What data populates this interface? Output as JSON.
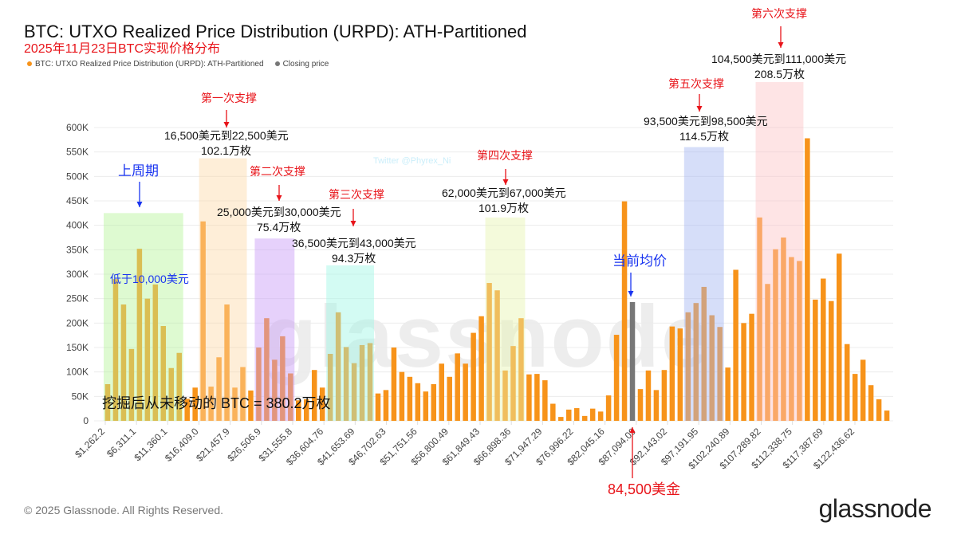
{
  "header": {
    "title": "BTC: UTXO Realized Price Distribution (URPD): ATH-Partitioned",
    "subtitle": "2025年11月23日BTC实现价格分布"
  },
  "legend": [
    {
      "label": "BTC: UTXO Realized Price Distribution (URPD): ATH-Partitioned",
      "color": "#f7931a"
    },
    {
      "label": "Closing price",
      "color": "#777777"
    }
  ],
  "chart_data": {
    "type": "bar",
    "title": "BTC: UTXO Realized Price Distribution (URPD): ATH-Partitioned",
    "ylim": [
      0,
      600000
    ],
    "yticks": [
      0,
      50000,
      100000,
      150000,
      200000,
      250000,
      300000,
      350000,
      400000,
      450000,
      500000,
      550000,
      600000
    ],
    "ytick_labels": [
      "0",
      "50K",
      "100K",
      "150K",
      "200K",
      "250K",
      "300K",
      "350K",
      "400K",
      "450K",
      "500K",
      "550K",
      "600K"
    ],
    "xtick_labels": [
      "$1,262.2",
      "$6,311.1",
      "$11,360.1",
      "$16,409.0",
      "$21,457.9",
      "$26,506.9",
      "$31,555.8",
      "$36,604.76",
      "$41,653.69",
      "$46,702.63",
      "$51,751.56",
      "$56,800.49",
      "$61,849.43",
      "$66,898.36",
      "$71,947.29",
      "$76,996.22",
      "$82,045.16",
      "$87,094.09",
      "$92,143.02",
      "$97,191.95",
      "$102,240.89",
      "$107,289.82",
      "$112,338.75",
      "$117,387.69",
      "$122,436.62"
    ],
    "grid": true,
    "legend_position": "top-left",
    "closing_price_bar_index": 66,
    "colors": {
      "bar": "#f7931a",
      "closing": "#777777"
    },
    "values": [
      75000,
      290000,
      238000,
      147000,
      352000,
      250000,
      279000,
      194000,
      108000,
      139000,
      45000,
      68000,
      408000,
      70000,
      130000,
      238000,
      68000,
      110000,
      62000,
      150000,
      210000,
      125000,
      173000,
      97000,
      42000,
      44000,
      104000,
      68000,
      137000,
      222000,
      151000,
      118000,
      155000,
      159000,
      56000,
      63000,
      150000,
      100000,
      90000,
      77000,
      60000,
      75000,
      117000,
      90000,
      138000,
      117000,
      180000,
      214000,
      282000,
      267000,
      103000,
      153000,
      210000,
      95000,
      96000,
      83000,
      35000,
      8000,
      23000,
      26000,
      10000,
      25000,
      19000,
      52000,
      176000,
      449000,
      243000,
      65000,
      103000,
      63000,
      104000,
      193000,
      189000,
      222000,
      241000,
      274000,
      216000,
      192000,
      109000,
      309000,
      200000,
      219000,
      416000,
      280000,
      351000,
      375000,
      335000,
      327000,
      578000,
      248000,
      291000,
      245000,
      342000,
      157000,
      96000,
      125000,
      73000,
      44000,
      21000
    ],
    "highlight_regions": [
      {
        "name": "上周期",
        "from_bar": 0,
        "to_bar": 9,
        "color": "#b6f59a"
      },
      {
        "name": "第一次支撑",
        "from_bar": 12,
        "to_bar": 17,
        "color": "#fdd9a8"
      },
      {
        "name": "第二次支撑",
        "from_bar": 19,
        "to_bar": 23,
        "color": "#c79af7"
      },
      {
        "name": "第三次支撑",
        "from_bar": 28,
        "to_bar": 33,
        "color": "#9df7e4"
      },
      {
        "name": "第四次支撑",
        "from_bar": 48,
        "to_bar": 52,
        "color": "#e6f5b0"
      },
      {
        "name": "第五次支撑",
        "from_bar": 73,
        "to_bar": 77,
        "color": "#a3b5f2"
      },
      {
        "name": "第六次支撑",
        "from_bar": 82,
        "to_bar": 87,
        "color": "#fcc3c6"
      }
    ]
  },
  "annotations": {
    "prev_cycle": "上周期",
    "below_10k": "低于10,000美元",
    "s1": "第一次支撑",
    "s1_range": "16,500美元到22,500美元",
    "s1_amt": "102.1万枚",
    "s2": "第二次支撑",
    "s2_range": "25,000美元到30,000美元",
    "s2_amt": "75.4万枚",
    "s3": "第三次支撑",
    "s3_range": "36,500美元到43,000美元",
    "s3_amt": "94.3万枚",
    "s4": "第四次支撑",
    "s4_range": "62,000美元到67,000美元",
    "s4_amt": "101.9万枚",
    "s5": "第五次支撑",
    "s5_range": "93,500美元到98,500美元",
    "s5_amt": "114.5万枚",
    "s6": "第六次支撑",
    "s6_range": "104,500美元到111,000美元",
    "s6_amt": "208.5万枚",
    "avg": "当前均价",
    "price": "84,500美金",
    "unmoved": "挖掘后从未移动的 BTC = 380.2万枚"
  },
  "watermark": {
    "text": "glassnode",
    "twitter": "Twitter @Phyrex_Ni"
  },
  "footer": {
    "copyright": "© 2025 Glassnode. All Rights Reserved.",
    "logo": "glassnode"
  }
}
